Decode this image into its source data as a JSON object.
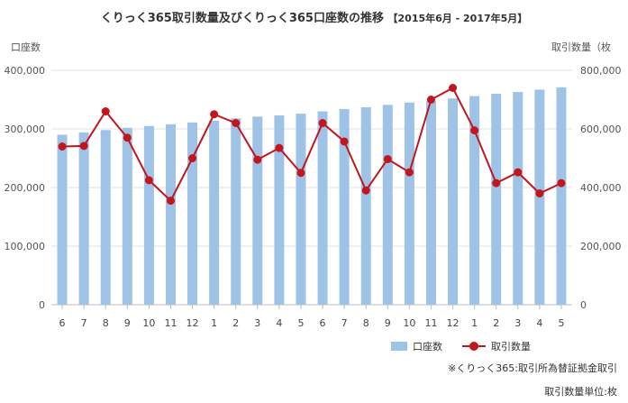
{
  "title": "くりっく365取引数量及びくりっく365口座数の推移",
  "subtitle": "【2015年6月 - 2017年5月】",
  "left_axis_label": "口座数",
  "right_axis_label": "取引数量（枚",
  "notes": [
    "※くりっく365:取引所為替証拠金取引",
    "取引数量単位:枚"
  ],
  "colors": {
    "bar": "#9fc3e6",
    "line": "#c0161c",
    "grid": "#e2e2e2"
  },
  "chart_data": {
    "type": "bar+line",
    "categories": [
      "6",
      "7",
      "8",
      "9",
      "10",
      "11",
      "12",
      "1",
      "2",
      "3",
      "4",
      "5",
      "6",
      "7",
      "8",
      "9",
      "10",
      "11",
      "12",
      "1",
      "2",
      "3",
      "4",
      "5"
    ],
    "series": [
      {
        "name": "口座数",
        "type": "bar",
        "axis": "left",
        "values": [
          290000,
          294000,
          298000,
          302000,
          305000,
          308000,
          311000,
          314000,
          318000,
          321000,
          323000,
          326000,
          330000,
          334000,
          337000,
          341000,
          345000,
          348000,
          352000,
          356000,
          360000,
          363000,
          367000,
          371000
        ]
      },
      {
        "name": "取引数量",
        "type": "line",
        "axis": "right",
        "values": [
          540000,
          542000,
          660000,
          570000,
          425000,
          355000,
          500000,
          650000,
          620000,
          495000,
          535000,
          450000,
          620000,
          557000,
          390000,
          497000,
          452000,
          700000,
          740000,
          595000,
          415000,
          452000,
          380000,
          415000
        ]
      }
    ],
    "y_left": {
      "min": 0,
      "max": 400000,
      "ticks": [
        "0",
        "100,000",
        "200,000",
        "300,000",
        "400,000"
      ]
    },
    "y_right": {
      "min": 0,
      "max": 800000,
      "ticks": [
        "0",
        "200,000",
        "400,000",
        "600,000",
        "800,000"
      ]
    },
    "grid": true,
    "legend_position": "bottom-right"
  }
}
